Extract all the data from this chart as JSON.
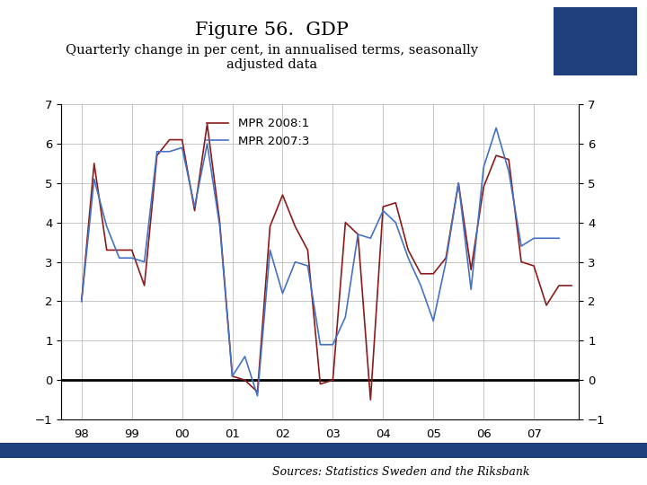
{
  "title": "Figure 56.  GDP",
  "subtitle": "Quarterly change in per cent, in annualised terms, seasonally\nadjusted data",
  "source_text": "Sources: Statistics Sweden and the Riksbank",
  "title_fontsize": 15,
  "subtitle_fontsize": 10.5,
  "legend_labels": [
    "MPR 2008:1",
    "MPR 2007:3"
  ],
  "line_colors": [
    "#8B1A1A",
    "#4472C4"
  ],
  "background_color": "#FFFFFF",
  "ylim": [
    -1,
    7
  ],
  "yticks": [
    -1,
    0,
    1,
    2,
    3,
    4,
    5,
    6,
    7
  ],
  "footer_color": "#1F3E7C",
  "xtick_labels": [
    "98",
    "99",
    "00",
    "01",
    "02",
    "03",
    "04",
    "05",
    "06",
    "07"
  ],
  "xtick_positions": [
    1998.0,
    1999.0,
    2000.0,
    2001.0,
    2002.0,
    2003.0,
    2004.0,
    2005.0,
    2006.0,
    2007.0
  ],
  "mpr2008_x": [
    1998.0,
    1998.25,
    1998.5,
    1998.75,
    1999.0,
    1999.25,
    1999.5,
    1999.75,
    2000.0,
    2000.25,
    2000.5,
    2000.75,
    2001.0,
    2001.25,
    2001.5,
    2001.75,
    2002.0,
    2002.25,
    2002.5,
    2002.75,
    2003.0,
    2003.25,
    2003.5,
    2003.75,
    2004.0,
    2004.25,
    2004.5,
    2004.75,
    2005.0,
    2005.25,
    2005.5,
    2005.75,
    2006.0,
    2006.25,
    2006.5,
    2006.75,
    2007.0,
    2007.25,
    2007.5,
    2007.75
  ],
  "mpr2008_y": [
    2.0,
    5.5,
    3.3,
    3.3,
    3.3,
    2.4,
    5.7,
    6.1,
    6.1,
    4.3,
    6.5,
    4.0,
    0.1,
    0.0,
    -0.3,
    3.9,
    4.7,
    3.9,
    3.3,
    -0.1,
    0.0,
    4.0,
    3.7,
    -0.5,
    4.4,
    4.5,
    3.3,
    2.7,
    2.7,
    3.1,
    5.0,
    2.8,
    4.9,
    5.7,
    5.6,
    3.0,
    2.9,
    1.9,
    2.4,
    2.4
  ],
  "mpr2007_x": [
    1998.0,
    1998.25,
    1998.5,
    1998.75,
    1999.0,
    1999.25,
    1999.5,
    1999.75,
    2000.0,
    2000.25,
    2000.5,
    2000.75,
    2001.0,
    2001.25,
    2001.5,
    2001.75,
    2002.0,
    2002.25,
    2002.5,
    2002.75,
    2003.0,
    2003.25,
    2003.5,
    2003.75,
    2004.0,
    2004.25,
    2004.5,
    2004.75,
    2005.0,
    2005.25,
    2005.5,
    2005.75,
    2006.0,
    2006.25,
    2006.5,
    2006.75,
    2007.0,
    2007.25,
    2007.5
  ],
  "mpr2007_y": [
    2.0,
    5.1,
    3.9,
    3.1,
    3.1,
    3.0,
    5.8,
    5.8,
    5.9,
    4.4,
    6.0,
    3.9,
    0.1,
    0.6,
    -0.4,
    3.3,
    2.2,
    3.0,
    2.9,
    0.9,
    0.9,
    1.6,
    3.7,
    3.6,
    4.3,
    4.0,
    3.1,
    2.4,
    1.5,
    3.0,
    5.0,
    2.3,
    5.4,
    6.4,
    5.3,
    3.4,
    3.6,
    3.6,
    3.6
  ]
}
